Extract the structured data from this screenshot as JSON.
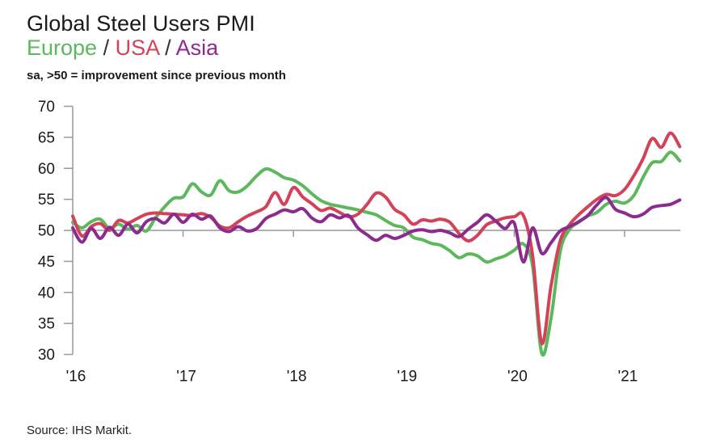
{
  "header": {
    "title": "Global Steel Users PMI",
    "legend": [
      {
        "label": "Europe",
        "color": "#5db75d"
      },
      {
        "label": "USA",
        "color": "#d2435a"
      },
      {
        "label": "Asia",
        "color": "#8b2b8d"
      }
    ],
    "separator": " / ",
    "note": "sa, >50 = improvement since previous month"
  },
  "chart_data": {
    "type": "line",
    "title": "Global Steel Users PMI",
    "x_unit": "month",
    "x_start": "2016-01",
    "x_end": "2021-07",
    "xtick_labels": [
      "'16",
      "'17",
      "'18",
      "'19",
      "'20",
      "'21"
    ],
    "xtick_month_index": [
      0,
      12,
      24,
      36,
      48,
      60
    ],
    "ylim": [
      30,
      70
    ],
    "yticks": [
      70,
      65,
      60,
      55,
      50,
      45,
      40,
      35,
      30
    ],
    "reference_line": 50,
    "grid": false,
    "legend_position": "subtitle",
    "axis_color": "#999999",
    "series": [
      {
        "name": "Europe",
        "color": "#5db75d",
        "values": [
          51.3,
          50.4,
          51.4,
          51.8,
          50.3,
          51.0,
          50.2,
          50.8,
          49.9,
          52.0,
          53.8,
          55.2,
          55.4,
          57.5,
          56.2,
          55.7,
          58.0,
          56.4,
          56.2,
          57.2,
          58.8,
          59.9,
          59.4,
          58.5,
          58.1,
          57.2,
          55.9,
          54.8,
          54.2,
          53.9,
          53.6,
          53.3,
          52.9,
          52.5,
          51.6,
          50.8,
          50.4,
          48.9,
          48.5,
          47.9,
          47.6,
          46.7,
          45.6,
          46.2,
          45.9,
          44.9,
          45.4,
          45.9,
          46.8,
          47.8,
          44.3,
          30.2,
          35.8,
          46.6,
          50.1,
          51.3,
          52.3,
          52.9,
          54.2,
          54.7,
          54.4,
          55.6,
          58.5,
          60.9,
          61.1,
          62.6,
          61.2
        ]
      },
      {
        "name": "USA",
        "color": "#d2435a",
        "values": [
          52.3,
          49.1,
          50.6,
          51.1,
          50.0,
          51.6,
          51.2,
          51.9,
          52.6,
          52.8,
          52.7,
          52.6,
          52.5,
          52.4,
          52.7,
          52.1,
          50.7,
          50.4,
          51.4,
          52.3,
          53.0,
          53.8,
          56.1,
          54.2,
          56.9,
          55.4,
          54.3,
          53.2,
          53.6,
          52.9,
          52.2,
          52.6,
          54.2,
          56.0,
          55.4,
          53.4,
          52.5,
          51.0,
          51.7,
          51.5,
          51.8,
          51.3,
          49.5,
          48.3,
          49.2,
          50.9,
          51.5,
          52.0,
          52.2,
          52.4,
          46.0,
          31.8,
          41.0,
          48.3,
          50.9,
          52.5,
          53.8,
          55.0,
          55.8,
          55.6,
          56.6,
          58.8,
          61.5,
          64.8,
          63.4,
          65.7,
          63.5
        ]
      },
      {
        "name": "Asia",
        "color": "#8b2b8d",
        "values": [
          50.4,
          48.1,
          50.3,
          48.7,
          50.5,
          49.2,
          51.0,
          49.6,
          51.4,
          51.9,
          51.2,
          52.6,
          51.3,
          52.6,
          51.8,
          52.3,
          50.4,
          49.8,
          50.6,
          49.9,
          50.3,
          51.9,
          52.6,
          53.3,
          53.0,
          53.5,
          52.0,
          51.4,
          52.5,
          52.0,
          52.4,
          50.4,
          49.3,
          48.4,
          49.2,
          48.7,
          49.2,
          49.9,
          50.1,
          49.8,
          50.0,
          49.6,
          49.0,
          50.2,
          51.3,
          52.5,
          51.5,
          50.3,
          51.2,
          44.9,
          50.4,
          46.3,
          48.0,
          49.9,
          50.6,
          51.4,
          52.4,
          54.1,
          55.3,
          53.4,
          52.8,
          52.2,
          52.6,
          53.7,
          54.0,
          54.2,
          54.9
        ]
      }
    ]
  },
  "footer": {
    "source": "Source: IHS Markit."
  }
}
